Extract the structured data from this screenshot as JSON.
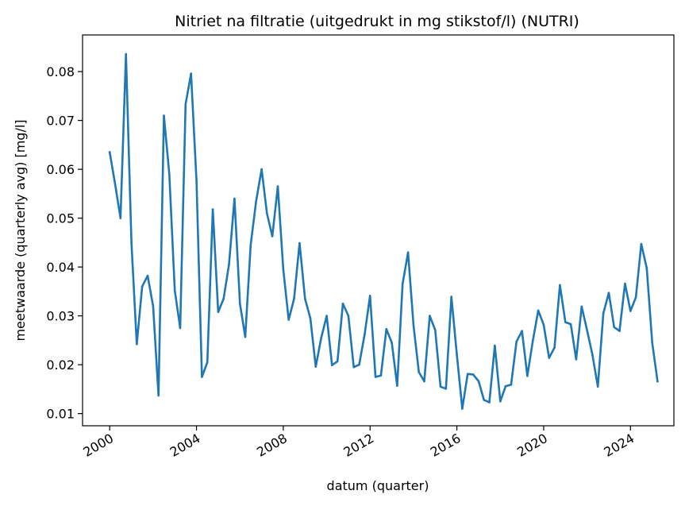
{
  "chart_data": {
    "type": "line",
    "title": "Nitriet na filtratie (uitgedrukt in mg stikstof/l) (NUTRI)",
    "xlabel": "datum (quarter)",
    "ylabel": "meetwaarde (quarterly avg) [mg/l]",
    "x_ticks": [
      "2000",
      "2004",
      "2008",
      "2012",
      "2016",
      "2020",
      "2024"
    ],
    "y_ticks": [
      "0.01",
      "0.02",
      "0.03",
      "0.04",
      "0.05",
      "0.06",
      "0.07",
      "0.08"
    ],
    "ylim": [
      0.0075,
      0.0875
    ],
    "xlim": [
      "1998-10-01",
      "2026-01-01"
    ],
    "grid": false,
    "series": [
      {
        "color": "#1f77b4",
        "x": [
          "2000-01-01",
          "2000-04-01",
          "2000-07-01",
          "2000-10-01",
          "2001-01-01",
          "2001-04-01",
          "2001-07-01",
          "2001-10-01",
          "2002-01-01",
          "2002-04-01",
          "2002-07-01",
          "2002-10-01",
          "2003-01-01",
          "2003-04-01",
          "2003-07-01",
          "2003-10-01",
          "2004-01-01",
          "2004-04-01",
          "2004-07-01",
          "2004-10-01",
          "2005-01-01",
          "2005-04-01",
          "2005-07-01",
          "2005-10-01",
          "2006-01-01",
          "2006-04-01",
          "2006-07-01",
          "2006-10-01",
          "2007-01-01",
          "2007-04-01",
          "2007-07-01",
          "2007-10-01",
          "2008-01-01",
          "2008-04-01",
          "2008-07-01",
          "2008-10-01",
          "2009-01-01",
          "2009-04-01",
          "2009-07-01",
          "2009-10-01",
          "2010-01-01",
          "2010-04-01",
          "2010-07-01",
          "2010-10-01",
          "2011-01-01",
          "2011-04-01",
          "2011-07-01",
          "2011-10-01",
          "2012-01-01",
          "2012-04-01",
          "2012-07-01",
          "2012-10-01",
          "2013-01-01",
          "2013-04-01",
          "2013-07-01",
          "2013-10-01",
          "2014-01-01",
          "2014-04-01",
          "2014-07-01",
          "2014-10-01",
          "2015-01-01",
          "2015-04-01",
          "2015-07-01",
          "2015-10-01",
          "2016-01-01",
          "2016-04-01",
          "2016-07-01",
          "2016-10-01",
          "2017-01-01",
          "2017-04-01",
          "2017-07-01",
          "2017-10-01",
          "2018-01-01",
          "2018-04-01",
          "2018-07-01",
          "2018-10-01",
          "2019-01-01",
          "2019-04-01",
          "2019-07-01",
          "2019-10-01",
          "2020-01-01",
          "2020-04-01",
          "2020-07-01",
          "2020-10-01",
          "2021-01-01",
          "2021-04-01",
          "2021-07-01",
          "2021-10-01",
          "2022-01-01",
          "2022-04-01",
          "2022-07-01",
          "2022-10-01",
          "2023-01-01",
          "2023-04-01",
          "2023-07-01",
          "2023-10-01",
          "2024-01-01",
          "2024-04-01",
          "2024-07-01",
          "2024-10-01",
          "2025-01-01",
          "2025-04-01"
        ],
        "values": [
          0.0635,
          0.057,
          0.05,
          0.0836,
          0.045,
          0.0242,
          0.036,
          0.0382,
          0.032,
          0.0137,
          0.071,
          0.059,
          0.0352,
          0.0275,
          0.0733,
          0.0796,
          0.0575,
          0.0175,
          0.0205,
          0.0518,
          0.0308,
          0.0335,
          0.0405,
          0.054,
          0.0325,
          0.0257,
          0.0445,
          0.0535,
          0.06,
          0.051,
          0.0463,
          0.0565,
          0.0395,
          0.0292,
          0.0335,
          0.0449,
          0.0335,
          0.0295,
          0.0196,
          0.0255,
          0.03,
          0.0199,
          0.0207,
          0.0325,
          0.03,
          0.0195,
          0.02,
          0.0262,
          0.0341,
          0.0175,
          0.0178,
          0.0273,
          0.0245,
          0.0157,
          0.0365,
          0.043,
          0.028,
          0.0185,
          0.0166,
          0.03,
          0.0271,
          0.0155,
          0.0151,
          0.0339,
          0.022,
          0.011,
          0.0181,
          0.018,
          0.0166,
          0.0128,
          0.0123,
          0.0239,
          0.0125,
          0.0156,
          0.0159,
          0.0247,
          0.0269,
          0.0177,
          0.0248,
          0.0311,
          0.0282,
          0.0214,
          0.0235,
          0.0363,
          0.0287,
          0.0283,
          0.0211,
          0.0319,
          0.027,
          0.022,
          0.0155,
          0.0305,
          0.0347,
          0.0277,
          0.0269,
          0.0366,
          0.031,
          0.0338,
          0.0447,
          0.0398,
          0.0245,
          0.0166
        ]
      }
    ]
  }
}
